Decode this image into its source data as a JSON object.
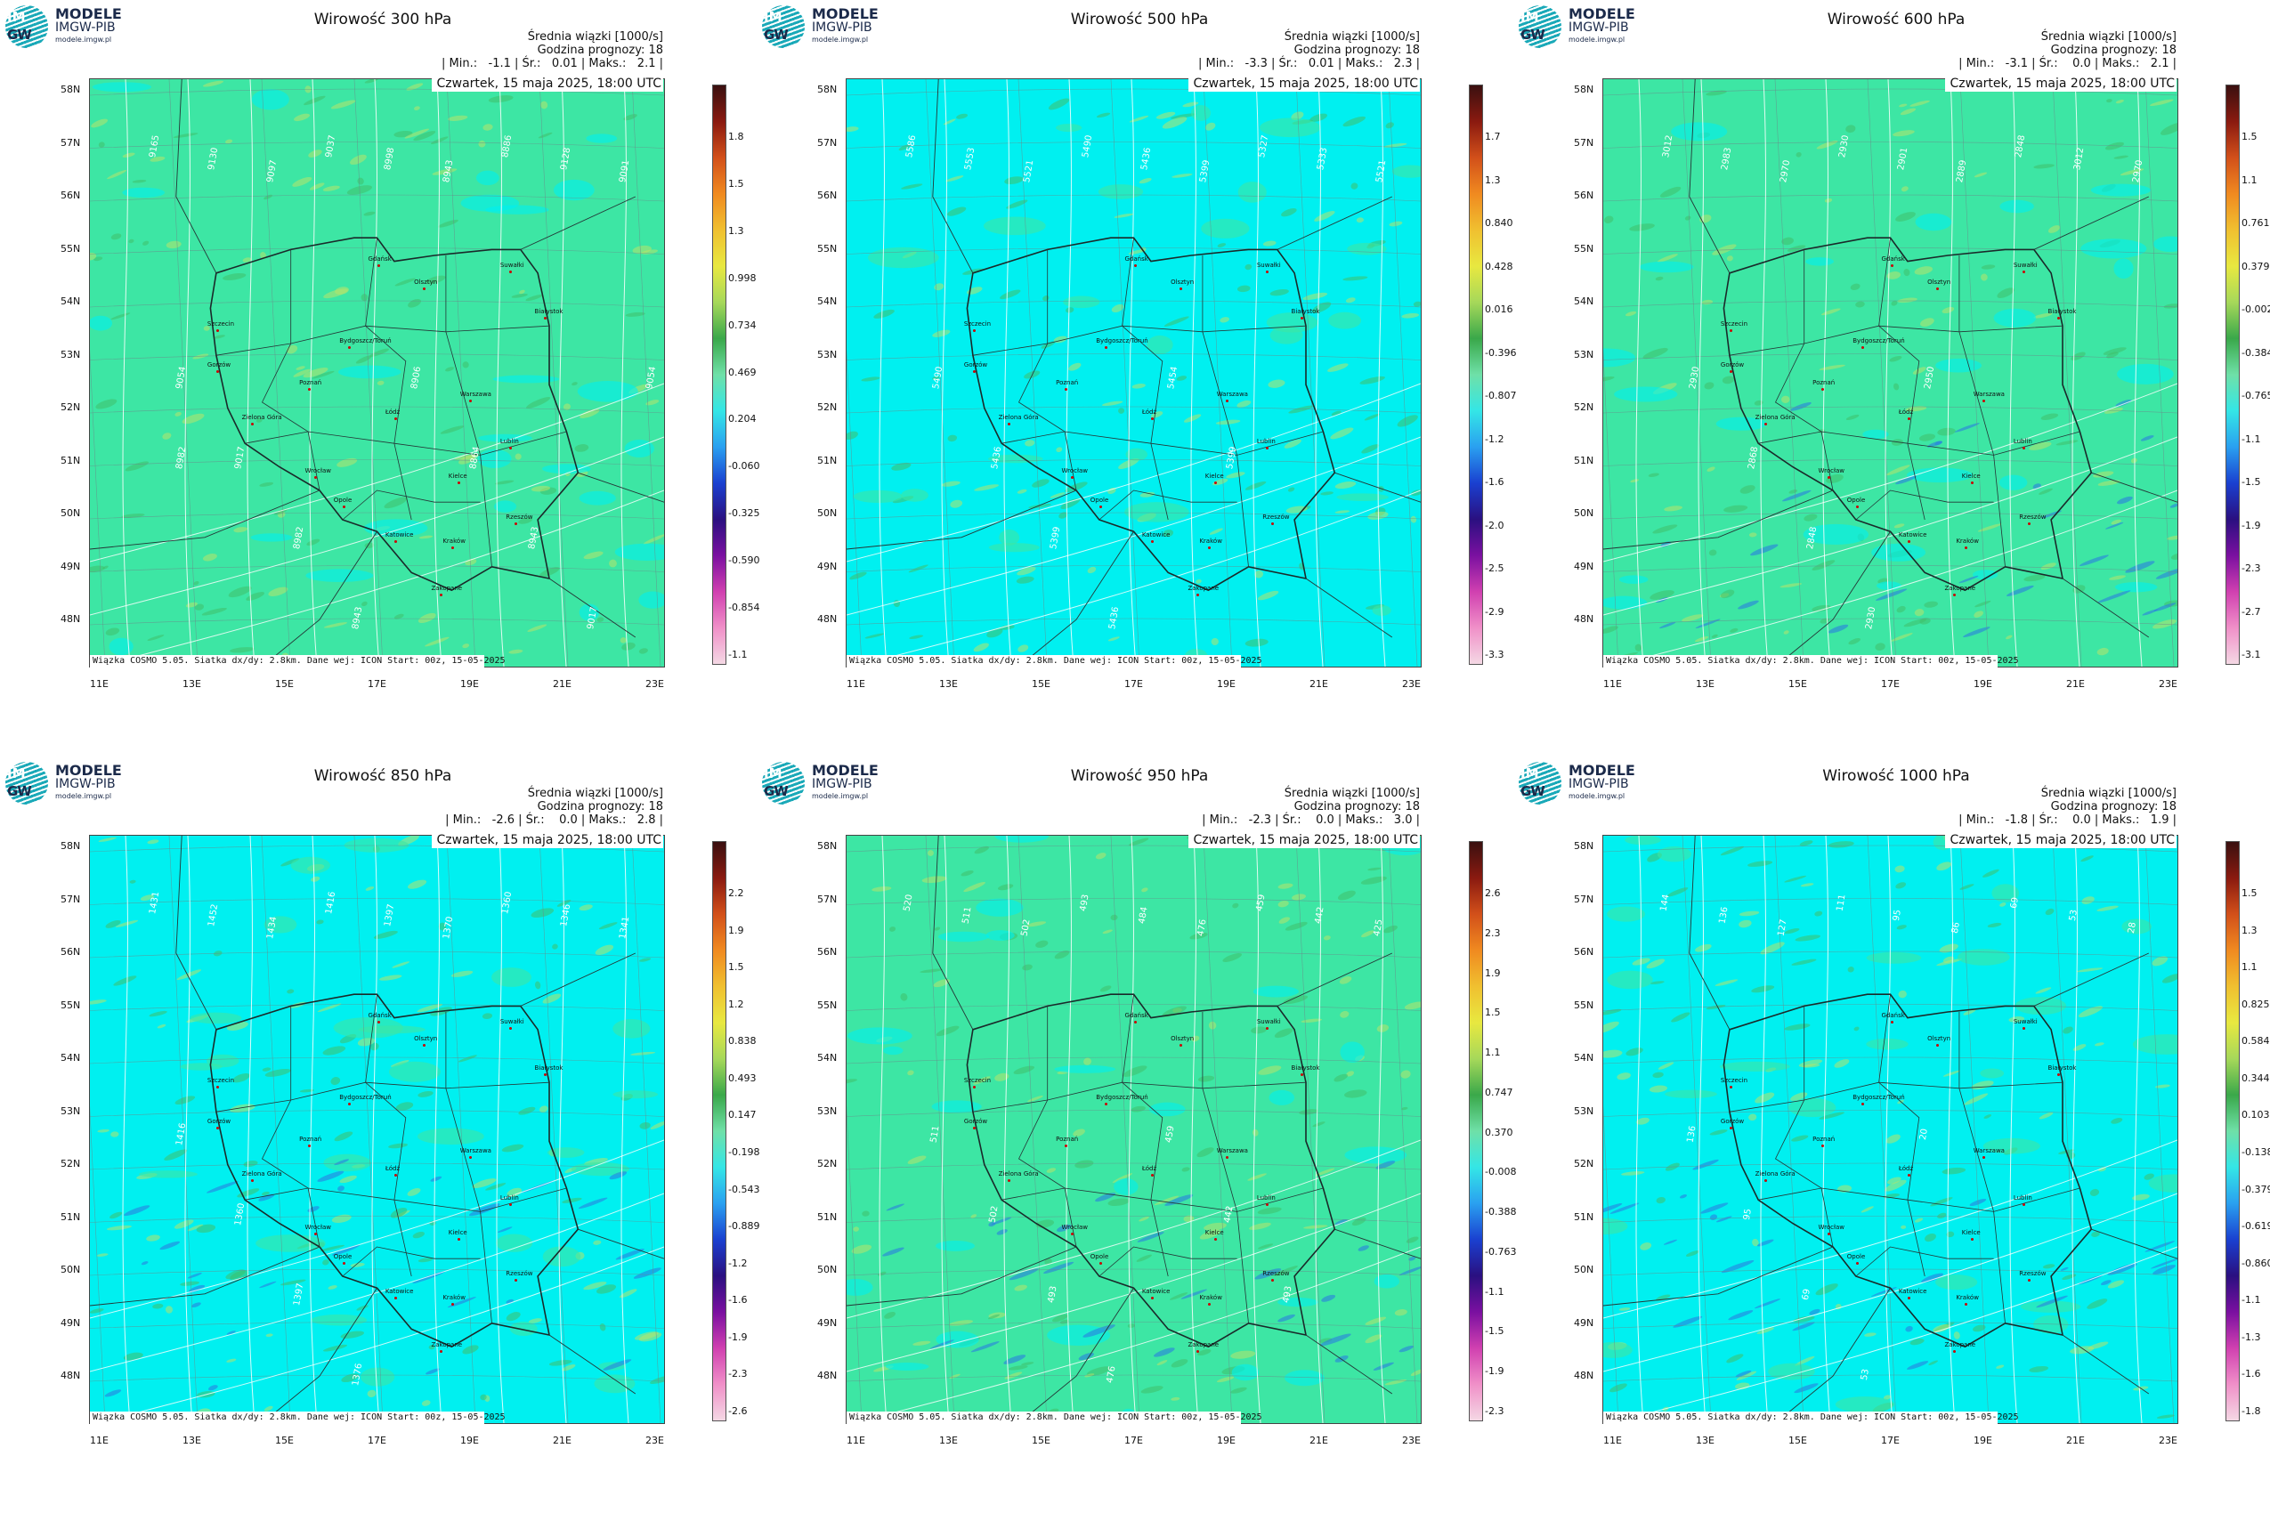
{
  "logo": {
    "line1": "MODELE",
    "line2": "IMGW-PIB",
    "line3": "modele.imgw.pl",
    "mark_top": "IM",
    "mark_bottom": "GW"
  },
  "common": {
    "mean_label": "Średnia wiązki [1000/s]",
    "forecast_hour": "Godzina prognozy: 18",
    "date": "Czwartek, 15 maja 2025, 18:00 UTC",
    "footer": "Wiązka COSMO 5.05. Siatka dx/dy: 2.8km. Dane wej: ICON Start: 00z, 15-05-2025",
    "lat_labels": [
      "58N",
      "57N",
      "56N",
      "55N",
      "54N",
      "53N",
      "52N",
      "51N",
      "50N",
      "49N",
      "48N"
    ],
    "lon_labels": [
      "11E",
      "13E",
      "15E",
      "17E",
      "19E",
      "21E",
      "23E"
    ],
    "cities": [
      "Gdańsk",
      "Olsztyn",
      "Suwałki",
      "Szczecin",
      "Białystok",
      "Bydgoszcz/Toruń",
      "Gorzów",
      "Poznań",
      "Warszawa",
      "Zielona Góra",
      "Łódź",
      "Lublin",
      "Wrocław",
      "Kielce",
      "Opole",
      "Rzeszów",
      "Katowice",
      "Kraków",
      "Zakopane"
    ],
    "colors": {
      "green_bg": "#3de6a4",
      "cyan_bg": "#00f0f0",
      "contour": "#ffffff",
      "border": "#1a2a2a"
    }
  },
  "panels": [
    {
      "title": "Wirowość 300 hPa",
      "stats": "| Min.:   -1.1 | Śr.:   0.01 | Maks.:   2.1 |",
      "bg": "green",
      "cbar_ticks": [
        "1.8",
        "1.5",
        "1.3",
        "0.998",
        "0.734",
        "0.469",
        "0.204",
        "-0.060",
        "-0.325",
        "-0.590",
        "-0.854",
        "-1.1"
      ],
      "contours": [
        "9165",
        "9130",
        "9097",
        "9037",
        "8998",
        "8943",
        "8886",
        "9128",
        "9091",
        "9054",
        "9017",
        "8982",
        "8943",
        "8906",
        "8864",
        "8943",
        "9017",
        "9054",
        "8982"
      ]
    },
    {
      "title": "Wirowość 500 hPa",
      "stats": "| Min.:   -3.3 | Śr.:   0.01 | Maks.:   2.3 |",
      "bg": "cyan",
      "cbar_ticks": [
        "1.7",
        "1.3",
        "0.840",
        "0.428",
        "0.016",
        "-0.396",
        "-0.807",
        "-1.2",
        "-1.6",
        "-2.0",
        "-2.5",
        "-2.9",
        "-3.3"
      ],
      "contours": [
        "5586",
        "5553",
        "5521",
        "5490",
        "5436",
        "5399",
        "5327",
        "5333",
        "5521",
        "5490",
        "5436",
        "5399",
        "5436",
        "5454",
        "5399"
      ]
    },
    {
      "title": "Wirowość 600 hPa",
      "stats": "| Min.:   -3.1 | Śr.:    0.0 | Maks.:   2.1 |",
      "bg": "green",
      "cbar_ticks": [
        "1.5",
        "1.1",
        "0.761",
        "0.379",
        "-0.002",
        "-0.384",
        "-0.765",
        "-1.1",
        "-1.5",
        "-1.9",
        "-2.3",
        "-2.7",
        "-3.1"
      ],
      "contours": [
        "3012",
        "2983",
        "2970",
        "2930",
        "2901",
        "2889",
        "2848",
        "3012",
        "2970",
        "2930",
        "2868",
        "2848",
        "2930",
        "2950"
      ]
    },
    {
      "title": "Wirowość 850 hPa",
      "stats": "| Min.:   -2.6 | Śr.:    0.0 | Maks.:   2.8 |",
      "bg": "cyan",
      "cbar_ticks": [
        "2.2",
        "1.9",
        "1.5",
        "1.2",
        "0.838",
        "0.493",
        "0.147",
        "-0.198",
        "-0.543",
        "-0.889",
        "-1.2",
        "-1.6",
        "-1.9",
        "-2.3",
        "-2.6"
      ],
      "contours": [
        "1431",
        "1452",
        "1434",
        "1416",
        "1397",
        "1370",
        "1360",
        "1346",
        "1341",
        "1416",
        "1360",
        "1397",
        "1376"
      ]
    },
    {
      "title": "Wirowość 950 hPa",
      "stats": "| Min.:   -2.3 | Śr.:    0.0 | Maks.:   3.0 |",
      "bg": "green",
      "cbar_ticks": [
        "2.6",
        "2.3",
        "1.9",
        "1.5",
        "1.1",
        "0.747",
        "0.370",
        "-0.008",
        "-0.388",
        "-0.763",
        "-1.1",
        "-1.5",
        "-1.9",
        "-2.3"
      ],
      "contours": [
        "520",
        "511",
        "502",
        "493",
        "484",
        "476",
        "459",
        "442",
        "425",
        "511",
        "502",
        "493",
        "476",
        "459",
        "442",
        "493"
      ]
    },
    {
      "title": "Wirowość 1000 hPa",
      "stats": "| Min.:   -1.8 | Śr.:    0.0 | Maks.:   1.9 |",
      "bg": "cyan",
      "cbar_ticks": [
        "1.5",
        "1.3",
        "1.1",
        "0.825",
        "0.584",
        "0.344",
        "0.103",
        "-0.138",
        "-0.379",
        "-0.619",
        "-0.860",
        "-1.1",
        "-1.3",
        "-1.6",
        "-1.8"
      ],
      "contours": [
        "144",
        "136",
        "127",
        "111",
        "95",
        "86",
        "69",
        "53",
        "28",
        "136",
        "95",
        "69",
        "53",
        "20"
      ]
    }
  ]
}
